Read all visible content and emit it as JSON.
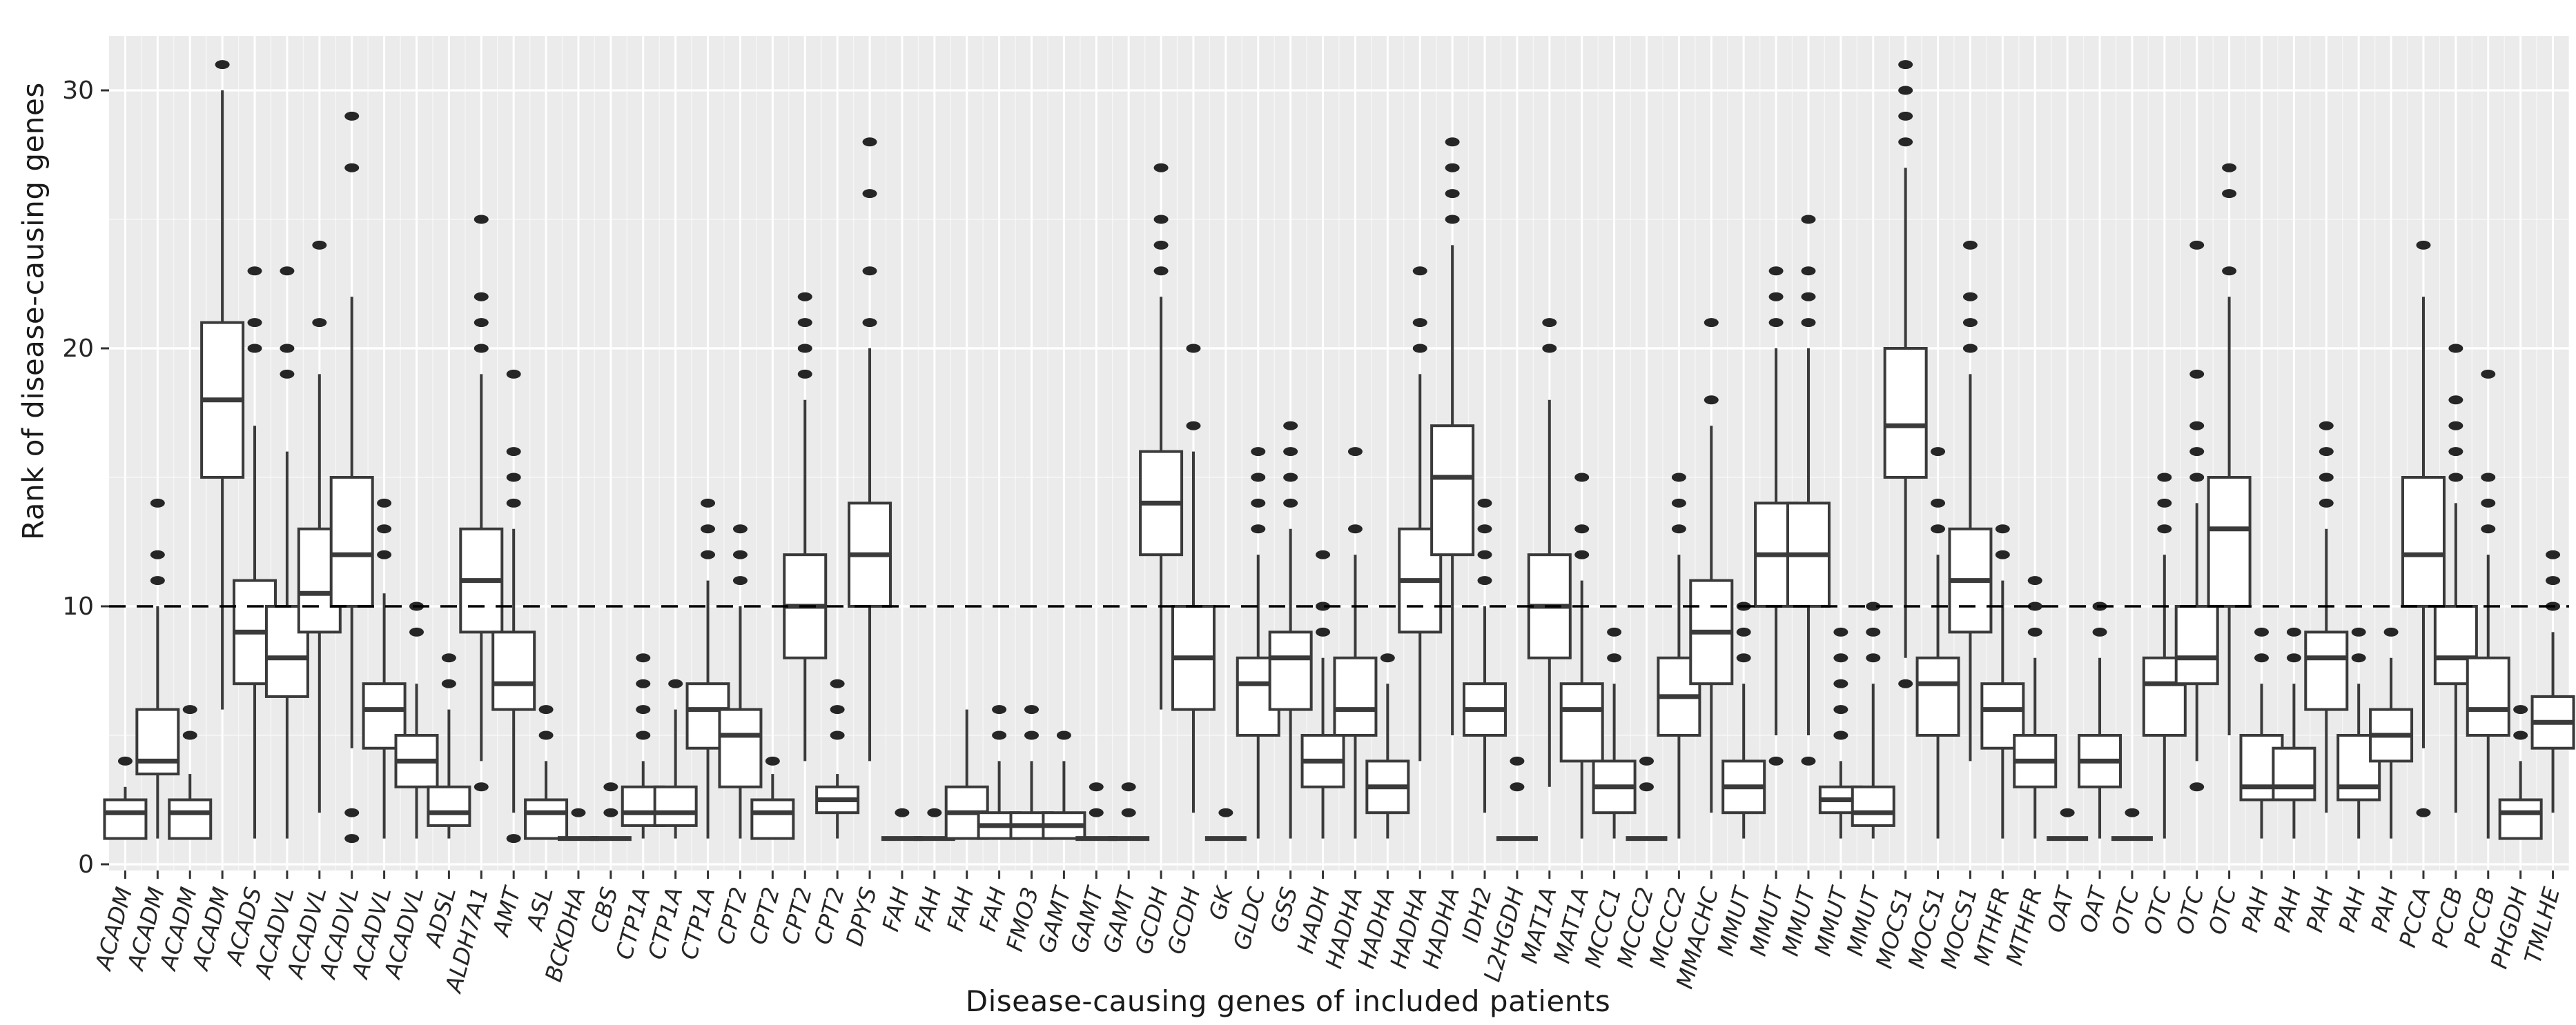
{
  "chart_data": {
    "type": "boxplot",
    "title": "",
    "xlabel": "Disease-causing genes of included patients",
    "ylabel": "Rank of disease-causing genes",
    "ylim": [
      0,
      32
    ],
    "yticks": [
      0,
      10,
      20,
      30
    ],
    "grid": "on",
    "reference_line_y": 10,
    "reference_line_style": "dashed",
    "colors": {
      "panel_background": "#EBEBEB",
      "grid_major": "#FFFFFF",
      "grid_minor": "#F7F7F7",
      "box_fill": "#FFFFFF",
      "box_stroke": "#3a3a3a",
      "outlier": "#262626",
      "reference_line": "#000000",
      "axis_text": "#262626",
      "tick_mark": "#333333"
    },
    "boxes": [
      {
        "gene": "ACADM",
        "q1": 1,
        "med": 2,
        "q3": 2.5,
        "lo": 1,
        "hi": 3,
        "out": [
          4
        ]
      },
      {
        "gene": "ACADM",
        "q1": 3.5,
        "med": 4,
        "q3": 6,
        "lo": 1,
        "hi": 10,
        "out": [
          11,
          12,
          14
        ]
      },
      {
        "gene": "ACADM",
        "q1": 1,
        "med": 2,
        "q3": 2.5,
        "lo": 1,
        "hi": 3.5,
        "out": [
          5,
          6
        ]
      },
      {
        "gene": "ACADM",
        "q1": 15,
        "med": 18,
        "q3": 21,
        "lo": 6,
        "hi": 30,
        "out": [
          31
        ]
      },
      {
        "gene": "ACADS",
        "q1": 7,
        "med": 9,
        "q3": 11,
        "lo": 1,
        "hi": 17,
        "out": [
          20,
          21,
          23
        ]
      },
      {
        "gene": "ACADVL",
        "q1": 6.5,
        "med": 8,
        "q3": 10,
        "lo": 1,
        "hi": 16,
        "out": [
          19,
          20,
          23
        ]
      },
      {
        "gene": "ACADVL",
        "q1": 9,
        "med": 10.5,
        "q3": 13,
        "lo": 2,
        "hi": 19,
        "out": [
          21,
          24
        ]
      },
      {
        "gene": "ACADVL",
        "q1": 10,
        "med": 12,
        "q3": 15,
        "lo": 4.5,
        "hi": 22,
        "out": [
          1,
          2,
          27,
          29
        ]
      },
      {
        "gene": "ACADVL",
        "q1": 4.5,
        "med": 6,
        "q3": 7,
        "lo": 1,
        "hi": 10.5,
        "out": [
          12,
          13,
          14
        ]
      },
      {
        "gene": "ACADVL",
        "q1": 3,
        "med": 4,
        "q3": 5,
        "lo": 1,
        "hi": 7,
        "out": [
          9,
          10
        ]
      },
      {
        "gene": "ADSL",
        "q1": 1.5,
        "med": 2,
        "q3": 3,
        "lo": 1,
        "hi": 6,
        "out": [
          7,
          8
        ]
      },
      {
        "gene": "ALDH7A1",
        "q1": 9,
        "med": 11,
        "q3": 13,
        "lo": 4,
        "hi": 19,
        "out": [
          3,
          20,
          21,
          22,
          25
        ]
      },
      {
        "gene": "AMT",
        "q1": 6,
        "med": 7,
        "q3": 9,
        "lo": 2,
        "hi": 13,
        "out": [
          1,
          14,
          15,
          16,
          19
        ]
      },
      {
        "gene": "ASL",
        "q1": 1,
        "med": 2,
        "q3": 2.5,
        "lo": 1,
        "hi": 4,
        "out": [
          5,
          6
        ]
      },
      {
        "gene": "BCKDHA",
        "q1": 1,
        "med": 1,
        "q3": 1,
        "lo": 1,
        "hi": 1,
        "out": [
          2
        ]
      },
      {
        "gene": "CBS",
        "q1": 1,
        "med": 1,
        "q3": 1,
        "lo": 1,
        "hi": 1,
        "out": [
          2,
          3
        ]
      },
      {
        "gene": "CTP1A",
        "q1": 1.5,
        "med": 2,
        "q3": 3,
        "lo": 1,
        "hi": 4,
        "out": [
          5,
          6,
          7,
          8
        ]
      },
      {
        "gene": "CTP1A",
        "q1": 1.5,
        "med": 2,
        "q3": 3,
        "lo": 1,
        "hi": 6,
        "out": [
          7
        ]
      },
      {
        "gene": "CTP1A",
        "q1": 4.5,
        "med": 6,
        "q3": 7,
        "lo": 1,
        "hi": 11,
        "out": [
          12,
          13,
          14
        ]
      },
      {
        "gene": "CPT2",
        "q1": 3,
        "med": 5,
        "q3": 6,
        "lo": 1,
        "hi": 10,
        "out": [
          11,
          12,
          13
        ]
      },
      {
        "gene": "CPT2",
        "q1": 1,
        "med": 2,
        "q3": 2.5,
        "lo": 1,
        "hi": 3.5,
        "out": [
          4
        ]
      },
      {
        "gene": "CPT2",
        "q1": 8,
        "med": 10,
        "q3": 12,
        "lo": 4,
        "hi": 18,
        "out": [
          19,
          20,
          21,
          22
        ]
      },
      {
        "gene": "CPT2",
        "q1": 2,
        "med": 2.5,
        "q3": 3,
        "lo": 1,
        "hi": 3.5,
        "out": [
          5,
          6,
          7
        ]
      },
      {
        "gene": "DPYS",
        "q1": 10,
        "med": 12,
        "q3": 14,
        "lo": 4,
        "hi": 20,
        "out": [
          21,
          23,
          26,
          28
        ]
      },
      {
        "gene": "FAH",
        "q1": 1,
        "med": 1,
        "q3": 1,
        "lo": 1,
        "hi": 1,
        "out": [
          2
        ]
      },
      {
        "gene": "FAH",
        "q1": 1,
        "med": 1,
        "q3": 1,
        "lo": 1,
        "hi": 1,
        "out": [
          2
        ]
      },
      {
        "gene": "FAH",
        "q1": 1,
        "med": 2,
        "q3": 3,
        "lo": 1,
        "hi": 6,
        "out": []
      },
      {
        "gene": "FAH",
        "q1": 1,
        "med": 1.5,
        "q3": 2,
        "lo": 1,
        "hi": 4,
        "out": [
          5,
          6
        ]
      },
      {
        "gene": "FMO3",
        "q1": 1,
        "med": 1.5,
        "q3": 2,
        "lo": 1,
        "hi": 4,
        "out": [
          5,
          6
        ]
      },
      {
        "gene": "GAMT",
        "q1": 1,
        "med": 1.5,
        "q3": 2,
        "lo": 1,
        "hi": 4,
        "out": [
          5
        ]
      },
      {
        "gene": "GAMT",
        "q1": 1,
        "med": 1,
        "q3": 1,
        "lo": 1,
        "hi": 1,
        "out": [
          2,
          3
        ]
      },
      {
        "gene": "GAMT",
        "q1": 1,
        "med": 1,
        "q3": 1,
        "lo": 1,
        "hi": 1,
        "out": [
          2,
          3
        ]
      },
      {
        "gene": "GCDH",
        "q1": 12,
        "med": 14,
        "q3": 16,
        "lo": 6,
        "hi": 22,
        "out": [
          23,
          24,
          25,
          27
        ]
      },
      {
        "gene": "GCDH",
        "q1": 6,
        "med": 8,
        "q3": 10,
        "lo": 2,
        "hi": 16,
        "out": [
          17,
          20
        ]
      },
      {
        "gene": "GK",
        "q1": 1,
        "med": 1,
        "q3": 1,
        "lo": 1,
        "hi": 1,
        "out": [
          2
        ]
      },
      {
        "gene": "GLDC",
        "q1": 5,
        "med": 7,
        "q3": 8,
        "lo": 1,
        "hi": 12,
        "out": [
          13,
          14,
          15,
          16
        ]
      },
      {
        "gene": "GSS",
        "q1": 6,
        "med": 8,
        "q3": 9,
        "lo": 1,
        "hi": 13,
        "out": [
          14,
          15,
          16,
          17
        ]
      },
      {
        "gene": "HADH",
        "q1": 3,
        "med": 4,
        "q3": 5,
        "lo": 1,
        "hi": 8,
        "out": [
          9,
          10,
          12
        ]
      },
      {
        "gene": "HADHA",
        "q1": 5,
        "med": 6,
        "q3": 8,
        "lo": 1,
        "hi": 12,
        "out": [
          13,
          16
        ]
      },
      {
        "gene": "HADHA",
        "q1": 2,
        "med": 3,
        "q3": 4,
        "lo": 1,
        "hi": 7,
        "out": [
          8
        ]
      },
      {
        "gene": "HADHA",
        "q1": 9,
        "med": 11,
        "q3": 13,
        "lo": 4,
        "hi": 19,
        "out": [
          20,
          21,
          23
        ]
      },
      {
        "gene": "HADHA",
        "q1": 12,
        "med": 15,
        "q3": 17,
        "lo": 5,
        "hi": 24,
        "out": [
          25,
          26,
          27,
          28
        ]
      },
      {
        "gene": "IDH2",
        "q1": 5,
        "med": 6,
        "q3": 7,
        "lo": 2,
        "hi": 10,
        "out": [
          11,
          12,
          13,
          14
        ]
      },
      {
        "gene": "L2HGDH",
        "q1": 1,
        "med": 1,
        "q3": 1,
        "lo": 1,
        "hi": 1,
        "out": [
          3,
          4
        ]
      },
      {
        "gene": "MAT1A",
        "q1": 8,
        "med": 10,
        "q3": 12,
        "lo": 3,
        "hi": 18,
        "out": [
          20,
          21
        ]
      },
      {
        "gene": "MAT1A",
        "q1": 4,
        "med": 6,
        "q3": 7,
        "lo": 1,
        "hi": 11,
        "out": [
          12,
          13,
          15
        ]
      },
      {
        "gene": "MCCC1",
        "q1": 2,
        "med": 3,
        "q3": 4,
        "lo": 1,
        "hi": 7,
        "out": [
          8,
          9
        ]
      },
      {
        "gene": "MCCC2",
        "q1": 1,
        "med": 1,
        "q3": 1,
        "lo": 1,
        "hi": 1,
        "out": [
          3,
          4
        ]
      },
      {
        "gene": "MCCC2",
        "q1": 5,
        "med": 6.5,
        "q3": 8,
        "lo": 1,
        "hi": 12,
        "out": [
          13,
          14,
          15
        ]
      },
      {
        "gene": "MMACHC",
        "q1": 7,
        "med": 9,
        "q3": 11,
        "lo": 2,
        "hi": 17,
        "out": [
          18,
          21
        ]
      },
      {
        "gene": "MMUT",
        "q1": 2,
        "med": 3,
        "q3": 4,
        "lo": 1,
        "hi": 7,
        "out": [
          8,
          9,
          10
        ]
      },
      {
        "gene": "MMUT",
        "q1": 10,
        "med": 12,
        "q3": 14,
        "lo": 5,
        "hi": 20,
        "out": [
          4,
          21,
          22,
          23
        ]
      },
      {
        "gene": "MMUT",
        "q1": 10,
        "med": 12,
        "q3": 14,
        "lo": 5,
        "hi": 20,
        "out": [
          4,
          21,
          22,
          23,
          25
        ]
      },
      {
        "gene": "MMUT",
        "q1": 2,
        "med": 2.5,
        "q3": 3,
        "lo": 1,
        "hi": 4,
        "out": [
          5,
          6,
          7,
          8,
          9
        ]
      },
      {
        "gene": "MMUT",
        "q1": 1.5,
        "med": 2,
        "q3": 3,
        "lo": 1,
        "hi": 7,
        "out": [
          8,
          9,
          10
        ]
      },
      {
        "gene": "MOCS1",
        "q1": 15,
        "med": 17,
        "q3": 20,
        "lo": 8,
        "hi": 27,
        "out": [
          7,
          28,
          29,
          30,
          31
        ]
      },
      {
        "gene": "MOCS1",
        "q1": 5,
        "med": 7,
        "q3": 8,
        "lo": 1,
        "hi": 12,
        "out": [
          13,
          14,
          16
        ]
      },
      {
        "gene": "MOCS1",
        "q1": 9,
        "med": 11,
        "q3": 13,
        "lo": 4,
        "hi": 19,
        "out": [
          20,
          21,
          22,
          24
        ]
      },
      {
        "gene": "MTHFR",
        "q1": 4.5,
        "med": 6,
        "q3": 7,
        "lo": 1,
        "hi": 11,
        "out": [
          12,
          13
        ]
      },
      {
        "gene": "MTHFR",
        "q1": 3,
        "med": 4,
        "q3": 5,
        "lo": 1,
        "hi": 8,
        "out": [
          9,
          10,
          11
        ]
      },
      {
        "gene": "OAT",
        "q1": 1,
        "med": 1,
        "q3": 1,
        "lo": 1,
        "hi": 1,
        "out": [
          2
        ]
      },
      {
        "gene": "OAT",
        "q1": 3,
        "med": 4,
        "q3": 5,
        "lo": 1,
        "hi": 8,
        "out": [
          9,
          10
        ]
      },
      {
        "gene": "OTC",
        "q1": 1,
        "med": 1,
        "q3": 1,
        "lo": 1,
        "hi": 1,
        "out": [
          2
        ]
      },
      {
        "gene": "OTC",
        "q1": 5,
        "med": 7,
        "q3": 8,
        "lo": 1,
        "hi": 12,
        "out": [
          13,
          14,
          15
        ]
      },
      {
        "gene": "OTC",
        "q1": 7,
        "med": 8,
        "q3": 10,
        "lo": 4,
        "hi": 14,
        "out": [
          3,
          15,
          16,
          17,
          19,
          24
        ]
      },
      {
        "gene": "OTC",
        "q1": 10,
        "med": 13,
        "q3": 15,
        "lo": 5,
        "hi": 22,
        "out": [
          23,
          26,
          27
        ]
      },
      {
        "gene": "PAH",
        "q1": 2.5,
        "med": 3,
        "q3": 5,
        "lo": 1,
        "hi": 7,
        "out": [
          8,
          9
        ]
      },
      {
        "gene": "PAH",
        "q1": 2.5,
        "med": 3,
        "q3": 4.5,
        "lo": 1,
        "hi": 7,
        "out": [
          8,
          9
        ]
      },
      {
        "gene": "PAH",
        "q1": 6,
        "med": 8,
        "q3": 9,
        "lo": 2,
        "hi": 13,
        "out": [
          14,
          15,
          16,
          17
        ]
      },
      {
        "gene": "PAH",
        "q1": 2.5,
        "med": 3,
        "q3": 5,
        "lo": 1,
        "hi": 7,
        "out": [
          8,
          9
        ]
      },
      {
        "gene": "PAH",
        "q1": 4,
        "med": 5,
        "q3": 6,
        "lo": 1,
        "hi": 8,
        "out": [
          9
        ]
      },
      {
        "gene": "PCCA",
        "q1": 10,
        "med": 12,
        "q3": 15,
        "lo": 4.5,
        "hi": 22,
        "out": [
          2,
          24
        ]
      },
      {
        "gene": "PCCB",
        "q1": 7,
        "med": 8,
        "q3": 10,
        "lo": 2,
        "hi": 14,
        "out": [
          15,
          16,
          17,
          18,
          20
        ]
      },
      {
        "gene": "PCCB",
        "q1": 5,
        "med": 6,
        "q3": 8,
        "lo": 1,
        "hi": 12,
        "out": [
          13,
          14,
          15,
          19
        ]
      },
      {
        "gene": "PHGDH",
        "q1": 1,
        "med": 2,
        "q3": 2.5,
        "lo": 1,
        "hi": 4,
        "out": [
          5,
          6
        ]
      },
      {
        "gene": "TMLHE",
        "q1": 4.5,
        "med": 5.5,
        "q3": 6.5,
        "lo": 2,
        "hi": 9,
        "out": [
          10,
          11,
          12
        ]
      }
    ]
  }
}
